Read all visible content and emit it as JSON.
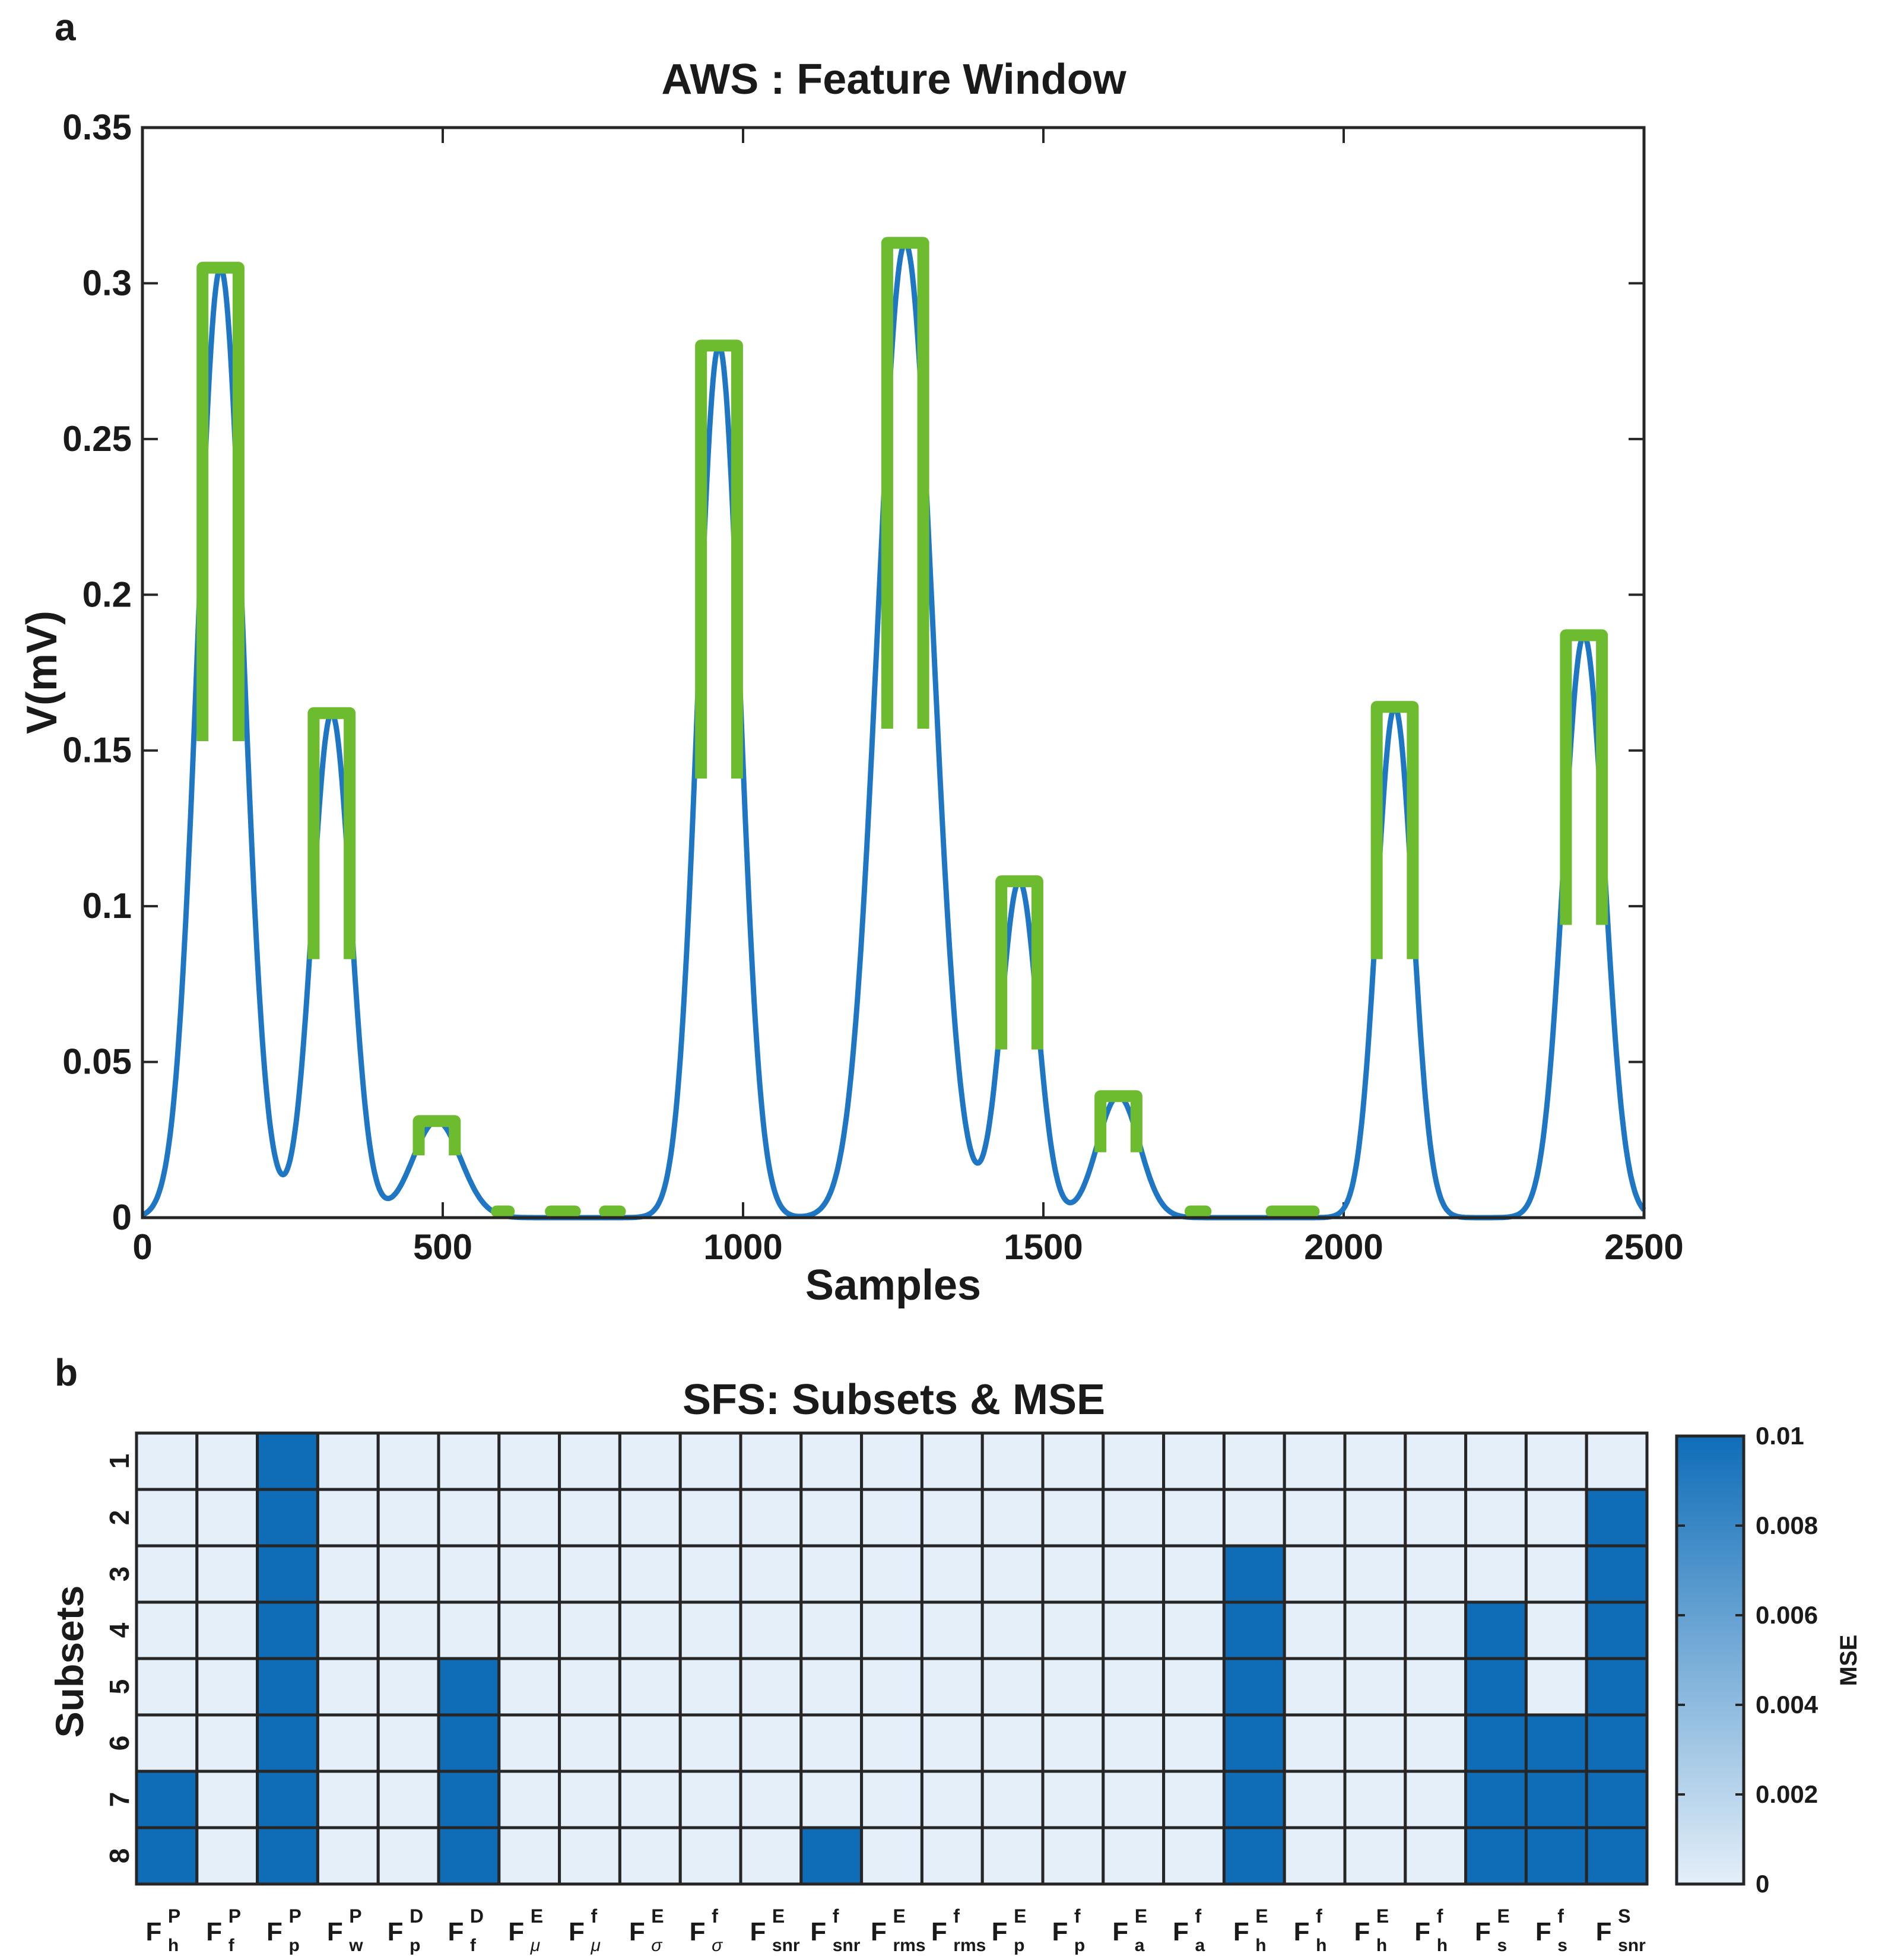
{
  "panel_a": {
    "letter": "a",
    "chart_data": {
      "type": "line",
      "title": "AWS : Feature Window",
      "xlabel": "Samples",
      "ylabel": "V(mV)",
      "xlim": [
        0,
        2500
      ],
      "ylim": [
        0,
        0.35
      ],
      "xticks": [
        0,
        500,
        1000,
        1500,
        2000,
        2500
      ],
      "xtick_labels": [
        "0",
        "500",
        "1000",
        "1500",
        "2000",
        "2500"
      ],
      "yticks": [
        0,
        0.05,
        0.1,
        0.15,
        0.2,
        0.25,
        0.3,
        0.35
      ],
      "ytick_labels": [
        "0",
        "0.05",
        "0.1",
        "0.15",
        "0.2",
        "0.25",
        "0.3",
        "0.35"
      ],
      "signal_color": "#1f77c4",
      "window_color": "#6dbb2e",
      "peaks": [
        {
          "center": 130,
          "amplitude": 0.305,
          "width": 38
        },
        {
          "center": 315,
          "amplitude": 0.162,
          "width": 32
        },
        {
          "center": 490,
          "amplitude": 0.031,
          "width": 40
        },
        {
          "center": 960,
          "amplitude": 0.28,
          "width": 35
        },
        {
          "center": 1270,
          "amplitude": 0.313,
          "width": 46
        },
        {
          "center": 1460,
          "amplitude": 0.108,
          "width": 30
        },
        {
          "center": 1625,
          "amplitude": 0.039,
          "width": 35
        },
        {
          "center": 2085,
          "amplitude": 0.164,
          "width": 30
        },
        {
          "center": 2400,
          "amplitude": 0.187,
          "width": 34
        }
      ],
      "windows": [
        {
          "start": 100,
          "end": 160,
          "bottom": 0.153,
          "top": 0.305
        },
        {
          "start": 285,
          "end": 345,
          "bottom": 0.083,
          "top": 0.162
        },
        {
          "start": 460,
          "end": 520,
          "bottom": 0.02,
          "top": 0.031
        },
        {
          "start": 930,
          "end": 990,
          "bottom": 0.141,
          "top": 0.28
        },
        {
          "start": 1240,
          "end": 1300,
          "bottom": 0.157,
          "top": 0.313
        },
        {
          "start": 1430,
          "end": 1490,
          "bottom": 0.054,
          "top": 0.108
        },
        {
          "start": 1595,
          "end": 1655,
          "bottom": 0.021,
          "top": 0.039
        },
        {
          "start": 2055,
          "end": 2115,
          "bottom": 0.083,
          "top": 0.164
        },
        {
          "start": 2370,
          "end": 2430,
          "bottom": 0.094,
          "top": 0.187
        }
      ],
      "baseline_windows": [
        {
          "start": 590,
          "end": 610
        },
        {
          "start": 680,
          "end": 720
        },
        {
          "start": 770,
          "end": 795
        },
        {
          "start": 1745,
          "end": 1770
        },
        {
          "start": 1880,
          "end": 1950
        }
      ]
    }
  },
  "panel_b": {
    "letter": "b",
    "chart_data": {
      "type": "heatmap",
      "title": "SFS: Subsets & MSE",
      "ylabel": "Subsets",
      "rows": [
        "1",
        "2",
        "3",
        "4",
        "5",
        "6",
        "7",
        "8"
      ],
      "columns": [
        {
          "base": "F",
          "sup": "P",
          "sub": "h"
        },
        {
          "base": "F",
          "sup": "P",
          "sub": "f"
        },
        {
          "base": "F",
          "sup": "P",
          "sub": "p"
        },
        {
          "base": "F",
          "sup": "P",
          "sub": "w"
        },
        {
          "base": "F",
          "sup": "D",
          "sub": "p"
        },
        {
          "base": "F",
          "sup": "D",
          "sub": "f"
        },
        {
          "base": "F",
          "sup": "E",
          "sub": "μ"
        },
        {
          "base": "F",
          "sup": "f",
          "sub": "μ"
        },
        {
          "base": "F",
          "sup": "E",
          "sub": "σ"
        },
        {
          "base": "F",
          "sup": "f",
          "sub": "σ"
        },
        {
          "base": "F",
          "sup": "E",
          "sub": "snr"
        },
        {
          "base": "F",
          "sup": "f",
          "sub": "snr"
        },
        {
          "base": "F",
          "sup": "E",
          "sub": "rms"
        },
        {
          "base": "F",
          "sup": "f",
          "sub": "rms"
        },
        {
          "base": "F",
          "sup": "E",
          "sub": "p"
        },
        {
          "base": "F",
          "sup": "f",
          "sub": "p"
        },
        {
          "base": "F",
          "sup": "E",
          "sub": "a"
        },
        {
          "base": "F",
          "sup": "f",
          "sub": "a"
        },
        {
          "base": "F",
          "sup": "E",
          "sub": "h"
        },
        {
          "base": "F",
          "sup": "f",
          "sub": "h"
        },
        {
          "base": "F",
          "sup": "E",
          "sub": "h"
        },
        {
          "base": "F",
          "sup": "f",
          "sub": "h"
        },
        {
          "base": "F",
          "sup": "E",
          "sub": "s"
        },
        {
          "base": "F",
          "sup": "f",
          "sub": "s"
        },
        {
          "base": "F",
          "sup": "S",
          "sub": "snr"
        }
      ],
      "values": [
        [
          0,
          0,
          0.01,
          0,
          0,
          0,
          0,
          0,
          0,
          0,
          0,
          0,
          0,
          0,
          0,
          0,
          0,
          0,
          0,
          0,
          0,
          0,
          0,
          0,
          0
        ],
        [
          0,
          0,
          0.01,
          0,
          0,
          0,
          0,
          0,
          0,
          0,
          0,
          0,
          0,
          0,
          0,
          0,
          0,
          0,
          0,
          0,
          0,
          0,
          0,
          0,
          0.01
        ],
        [
          0,
          0,
          0.01,
          0,
          0,
          0,
          0,
          0,
          0,
          0,
          0,
          0,
          0,
          0,
          0,
          0,
          0,
          0,
          0.01,
          0,
          0,
          0,
          0,
          0,
          0.01
        ],
        [
          0,
          0,
          0.01,
          0,
          0,
          0,
          0,
          0,
          0,
          0,
          0,
          0,
          0,
          0,
          0,
          0,
          0,
          0,
          0.01,
          0,
          0,
          0,
          0.01,
          0,
          0.01
        ],
        [
          0,
          0,
          0.01,
          0,
          0,
          0.01,
          0,
          0,
          0,
          0,
          0,
          0,
          0,
          0,
          0,
          0,
          0,
          0,
          0.01,
          0,
          0,
          0,
          0.01,
          0,
          0.01
        ],
        [
          0,
          0,
          0.01,
          0,
          0,
          0.01,
          0,
          0,
          0,
          0,
          0,
          0,
          0,
          0,
          0,
          0,
          0,
          0,
          0.01,
          0,
          0,
          0,
          0.01,
          0.01,
          0.01
        ],
        [
          0.01,
          0,
          0.01,
          0,
          0,
          0.01,
          0,
          0,
          0,
          0,
          0,
          0,
          0,
          0,
          0,
          0,
          0,
          0,
          0.01,
          0,
          0,
          0,
          0.01,
          0.01,
          0.01
        ],
        [
          0.01,
          0,
          0.01,
          0,
          0,
          0.01,
          0,
          0,
          0,
          0,
          0,
          0.01,
          0,
          0,
          0,
          0,
          0,
          0,
          0.01,
          0,
          0,
          0,
          0.01,
          0.01,
          0.01
        ]
      ],
      "colorbar": {
        "label": "MSE",
        "range": [
          0,
          0.01
        ],
        "ticks": [
          0,
          0.002,
          0.004,
          0.006,
          0.008,
          0.01
        ],
        "tick_labels": [
          "0",
          "0.002",
          "0.004",
          "0.006",
          "0.008",
          "0.01"
        ],
        "color_low": "#e4eff9",
        "color_high": "#0f6db8"
      }
    }
  }
}
